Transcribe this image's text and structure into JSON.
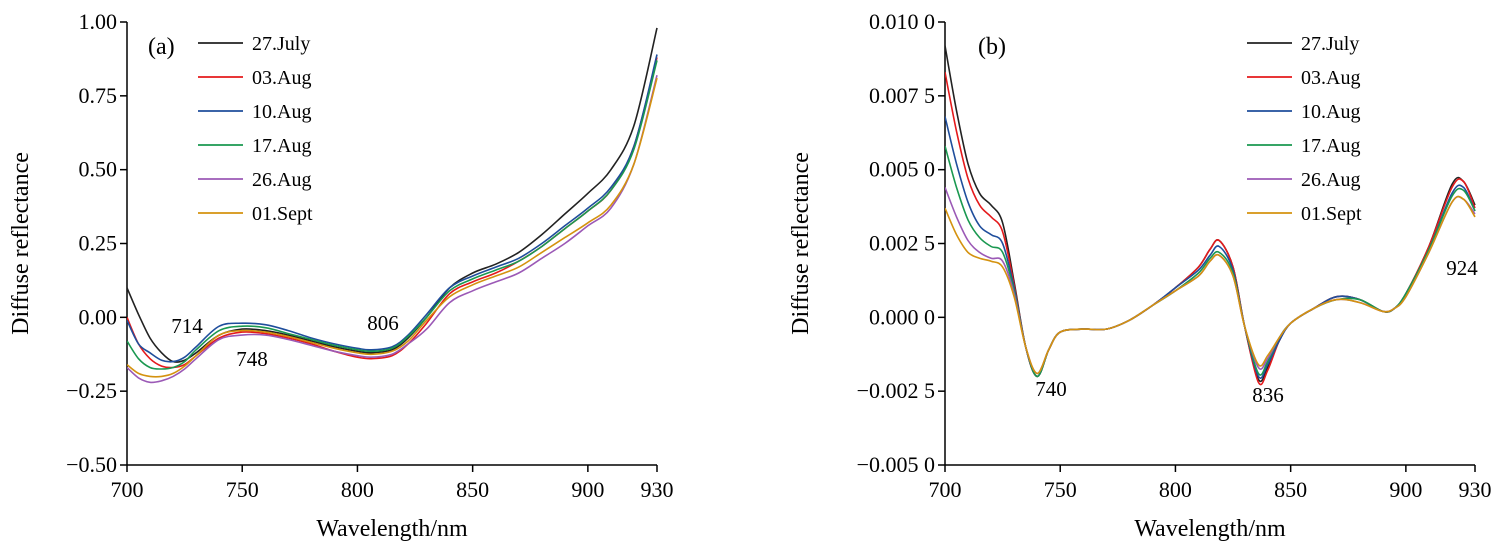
{
  "chart_data": [
    {
      "type": "line",
      "panel_label": "(a)",
      "xlabel": "Wavelength/nm",
      "ylabel": "Diffuse reflectance",
      "xlim": [
        700,
        930
      ],
      "ylim": [
        -0.5,
        1.0
      ],
      "xticks": [
        "700",
        "750",
        "800",
        "850",
        "900",
        "930"
      ],
      "xtick_values": [
        700,
        750,
        800,
        850,
        900,
        930
      ],
      "yticks": [
        "1.00",
        "0.75",
        "0.50",
        "0.25",
        "0.00",
        "−0.25",
        "−0.50"
      ],
      "ytick_values": [
        1.0,
        0.75,
        0.5,
        0.25,
        0.0,
        -0.25,
        -0.5
      ],
      "grid": false,
      "legend_position": "top-left",
      "annotations": [
        {
          "text": "714",
          "x": 714
        },
        {
          "text": "748",
          "x": 748
        },
        {
          "text": "806",
          "x": 806
        }
      ],
      "x": [
        700,
        705,
        710,
        715,
        720,
        725,
        730,
        740,
        750,
        760,
        770,
        780,
        790,
        800,
        806,
        815,
        822,
        830,
        840,
        850,
        860,
        870,
        880,
        890,
        900,
        910,
        920,
        930
      ],
      "series": [
        {
          "name": "27.July",
          "color": "#222222",
          "values": [
            0.1,
            0.01,
            -0.07,
            -0.12,
            -0.15,
            -0.145,
            -0.12,
            -0.06,
            -0.04,
            -0.045,
            -0.06,
            -0.08,
            -0.1,
            -0.115,
            -0.12,
            -0.11,
            -0.07,
            0.0,
            0.1,
            0.15,
            0.18,
            0.22,
            0.28,
            0.35,
            0.42,
            0.5,
            0.65,
            0.98
          ]
        },
        {
          "name": "03.Aug",
          "color": "#e41a1c",
          "values": [
            0.0,
            -0.09,
            -0.14,
            -0.165,
            -0.17,
            -0.16,
            -0.13,
            -0.07,
            -0.05,
            -0.055,
            -0.07,
            -0.09,
            -0.115,
            -0.135,
            -0.14,
            -0.13,
            -0.09,
            -0.02,
            0.08,
            0.12,
            0.15,
            0.19,
            0.24,
            0.3,
            0.36,
            0.43,
            0.58,
            0.88
          ]
        },
        {
          "name": "10.Aug",
          "color": "#1f4e9c",
          "values": [
            -0.01,
            -0.09,
            -0.12,
            -0.145,
            -0.15,
            -0.135,
            -0.1,
            -0.03,
            -0.02,
            -0.025,
            -0.045,
            -0.07,
            -0.09,
            -0.105,
            -0.11,
            -0.1,
            -0.06,
            0.01,
            0.1,
            0.14,
            0.17,
            0.2,
            0.25,
            0.31,
            0.37,
            0.44,
            0.58,
            0.89
          ]
        },
        {
          "name": "17.Aug",
          "color": "#1a9850",
          "values": [
            -0.08,
            -0.14,
            -0.17,
            -0.175,
            -0.17,
            -0.15,
            -0.11,
            -0.045,
            -0.03,
            -0.035,
            -0.055,
            -0.075,
            -0.095,
            -0.11,
            -0.115,
            -0.105,
            -0.065,
            0.0,
            0.09,
            0.13,
            0.16,
            0.19,
            0.24,
            0.3,
            0.36,
            0.43,
            0.57,
            0.87
          ]
        },
        {
          "name": "26.Aug",
          "color": "#9b59b6",
          "values": [
            -0.17,
            -0.205,
            -0.22,
            -0.215,
            -0.2,
            -0.175,
            -0.14,
            -0.075,
            -0.06,
            -0.06,
            -0.075,
            -0.095,
            -0.115,
            -0.13,
            -0.135,
            -0.125,
            -0.09,
            -0.04,
            0.05,
            0.09,
            0.12,
            0.15,
            0.2,
            0.25,
            0.31,
            0.37,
            0.52,
            0.82
          ]
        },
        {
          "name": "01.Sept",
          "color": "#d4920f",
          "values": [
            -0.16,
            -0.19,
            -0.2,
            -0.2,
            -0.19,
            -0.165,
            -0.13,
            -0.06,
            -0.045,
            -0.05,
            -0.065,
            -0.085,
            -0.105,
            -0.12,
            -0.125,
            -0.115,
            -0.08,
            -0.01,
            0.07,
            0.11,
            0.14,
            0.17,
            0.22,
            0.27,
            0.32,
            0.38,
            0.52,
            0.81
          ]
        }
      ]
    },
    {
      "type": "line",
      "panel_label": "(b)",
      "xlabel": "Wavelength/nm",
      "ylabel": "Diffuse reflectance",
      "xlim": [
        700,
        930
      ],
      "ylim": [
        -0.005,
        0.01
      ],
      "xticks": [
        "700",
        "750",
        "800",
        "850",
        "900",
        "930"
      ],
      "xtick_values": [
        700,
        750,
        800,
        850,
        900,
        930
      ],
      "yticks": [
        "0.010 0",
        "0.007 5",
        "0.005 0",
        "0.002 5",
        "0.000 0",
        "−0.002 5",
        "−0.005 0"
      ],
      "ytick_values": [
        0.01,
        0.0075,
        0.005,
        0.0025,
        0.0,
        -0.0025,
        -0.005
      ],
      "grid": false,
      "legend_position": "top-right",
      "annotations": [
        {
          "text": "740",
          "x": 740
        },
        {
          "text": "836",
          "x": 836
        },
        {
          "text": "924",
          "x": 924
        }
      ],
      "x": [
        700,
        705,
        710,
        715,
        720,
        725,
        730,
        735,
        740,
        745,
        750,
        760,
        770,
        780,
        790,
        800,
        810,
        815,
        819,
        825,
        830,
        836,
        840,
        845,
        850,
        860,
        870,
        880,
        890,
        895,
        900,
        910,
        920,
        925,
        930
      ],
      "series": [
        {
          "name": "27.July",
          "color": "#222222",
          "values": [
            0.0092,
            0.007,
            0.0052,
            0.0042,
            0.0038,
            0.0032,
            0.0012,
            -0.001,
            -0.002,
            -0.0011,
            -0.0005,
            -0.0004,
            -0.0004,
            -0.0001,
            0.0004,
            0.001,
            0.0017,
            0.0023,
            0.0026,
            0.0017,
            -0.0003,
            -0.0021,
            -0.0017,
            -0.0008,
            -0.0002,
            0.0003,
            0.0007,
            0.0006,
            0.0002,
            0.0003,
            0.0008,
            0.0024,
            0.0045,
            0.0046,
            0.0038
          ]
        },
        {
          "name": "03.Aug",
          "color": "#e41a1c",
          "values": [
            0.0083,
            0.0063,
            0.0047,
            0.0038,
            0.0034,
            0.0029,
            0.0011,
            -0.001,
            -0.002,
            -0.0011,
            -0.0005,
            -0.0004,
            -0.0004,
            -0.0001,
            0.0004,
            0.001,
            0.0017,
            0.0023,
            0.0026,
            0.0017,
            -0.0003,
            -0.0022,
            -0.0018,
            -0.0008,
            -0.0002,
            0.0003,
            0.0007,
            0.0006,
            0.0002,
            0.0003,
            0.0008,
            0.0024,
            0.0044,
            0.0046,
            0.0037
          ]
        },
        {
          "name": "10.Aug",
          "color": "#1f4e9c",
          "values": [
            0.0068,
            0.0052,
            0.0039,
            0.0031,
            0.0028,
            0.0025,
            0.001,
            -0.001,
            -0.002,
            -0.0011,
            -0.0005,
            -0.0004,
            -0.0004,
            -0.0001,
            0.0004,
            0.001,
            0.0016,
            0.0021,
            0.0024,
            0.0016,
            -0.0003,
            -0.002,
            -0.0016,
            -0.0008,
            -0.0002,
            0.0003,
            0.0007,
            0.0006,
            0.0002,
            0.0003,
            0.0008,
            0.0023,
            0.0042,
            0.0044,
            0.0036
          ]
        },
        {
          "name": "17.Aug",
          "color": "#1a9850",
          "values": [
            0.0058,
            0.0044,
            0.0033,
            0.0027,
            0.0024,
            0.0022,
            0.0009,
            -0.001,
            -0.002,
            -0.0011,
            -0.0005,
            -0.0004,
            -0.0004,
            -0.0001,
            0.0004,
            0.0009,
            0.0015,
            0.002,
            0.0022,
            0.0015,
            -0.0003,
            -0.0019,
            -0.0015,
            -0.0007,
            -0.0002,
            0.0003,
            0.0006,
            0.0006,
            0.0002,
            0.0003,
            0.0008,
            0.0023,
            0.0041,
            0.0043,
            0.0036
          ]
        },
        {
          "name": "26.Aug",
          "color": "#9b59b6",
          "values": [
            0.0044,
            0.0034,
            0.0026,
            0.0022,
            0.002,
            0.0019,
            0.0008,
            -0.001,
            -0.0019,
            -0.0011,
            -0.0005,
            -0.0004,
            -0.0004,
            -0.0001,
            0.0004,
            0.0009,
            0.0014,
            0.0019,
            0.0021,
            0.0014,
            -0.0003,
            -0.0017,
            -0.0014,
            -0.0007,
            -0.0002,
            0.0003,
            0.0006,
            0.0005,
            0.0002,
            0.0003,
            0.0007,
            0.0022,
            0.0039,
            0.004,
            0.0035
          ]
        },
        {
          "name": "01.Sept",
          "color": "#d4920f",
          "values": [
            0.0037,
            0.0028,
            0.0022,
            0.002,
            0.0019,
            0.0017,
            0.0007,
            -0.001,
            -0.0019,
            -0.0011,
            -0.0005,
            -0.0004,
            -0.0004,
            -0.0001,
            0.0004,
            0.0009,
            0.0014,
            0.0019,
            0.0021,
            0.0014,
            -0.0003,
            -0.0016,
            -0.0013,
            -0.0007,
            -0.0002,
            0.0003,
            0.0006,
            0.0005,
            0.0002,
            0.0003,
            0.0007,
            0.0022,
            0.0039,
            0.004,
            0.0034
          ]
        }
      ]
    }
  ]
}
